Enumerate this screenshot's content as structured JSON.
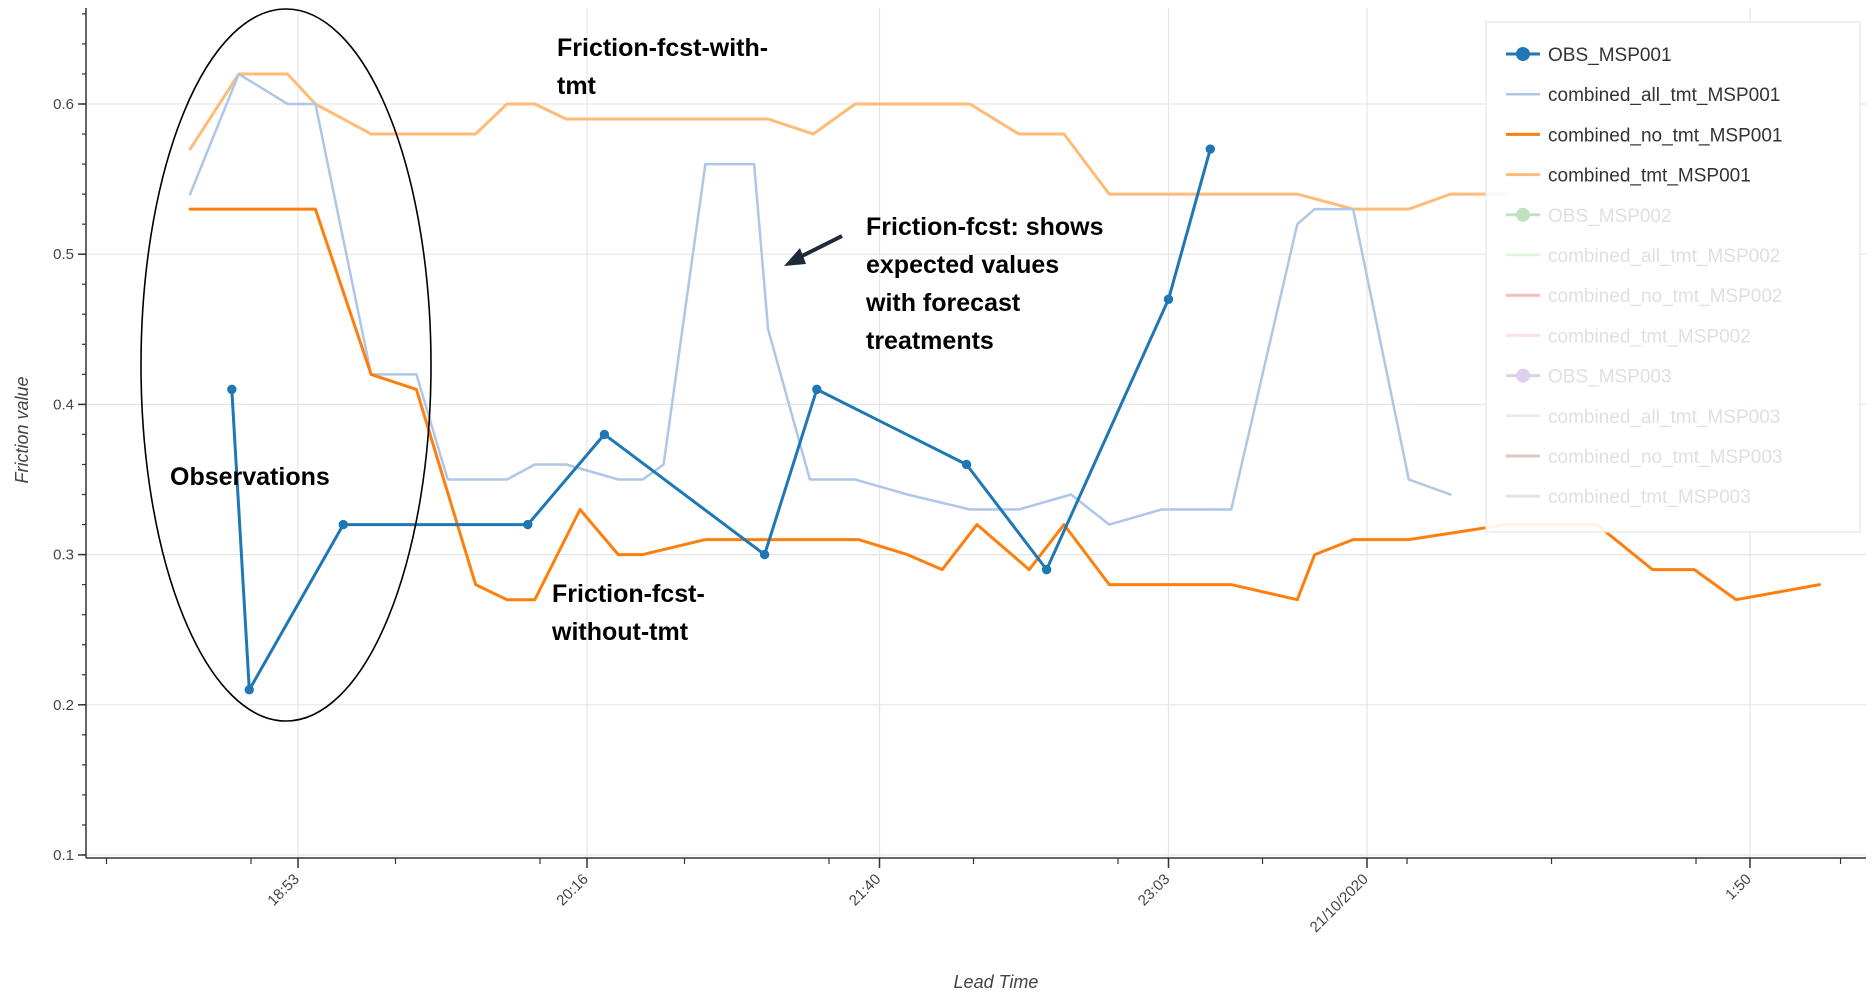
{
  "chart_data": {
    "type": "line",
    "xlabel": "Lead Time",
    "ylabel": "Friction value",
    "ylim": [
      0.1,
      0.6
    ],
    "y_ticks": [
      "0.1",
      "0.2",
      "0.3",
      "0.4",
      "0.5",
      "0.6"
    ],
    "x_unit": "minutes after 18:00",
    "xlim": [
      -2,
      500
    ],
    "x_ticks": [
      {
        "label": "18:53",
        "value": 53
      },
      {
        "label": "20:16",
        "value": 136
      },
      {
        "label": "21:40",
        "value": 220
      },
      {
        "label": "23:03",
        "value": 303
      },
      {
        "label": "21/10/2020",
        "value": 360
      },
      {
        "label": "1:50",
        "value": 470
      }
    ],
    "grid": true,
    "legend_position": "top-right",
    "series": [
      {
        "name": "OBS_MSP001",
        "color": "#1f77b4",
        "markers": true,
        "muted": false,
        "width": 3,
        "x": [
          34,
          39,
          66,
          119,
          141,
          187,
          202,
          245,
          268,
          303,
          315
        ],
        "y": [
          0.41,
          0.21,
          0.32,
          0.32,
          0.38,
          0.3,
          0.41,
          0.36,
          0.29,
          0.47,
          0.57
        ]
      },
      {
        "name": "combined_all_tmt_MSP001",
        "color": "#aec7e8",
        "markers": false,
        "muted": false,
        "width": 2.5,
        "x": [
          22,
          36,
          50,
          58,
          74,
          87,
          96,
          104,
          113,
          121,
          130,
          145,
          152,
          158,
          170,
          184,
          188,
          200,
          213,
          228,
          246,
          260,
          275,
          286,
          301,
          321,
          340,
          345,
          356,
          372,
          384
        ],
        "y": [
          0.54,
          0.62,
          0.6,
          0.6,
          0.42,
          0.42,
          0.35,
          0.35,
          0.35,
          0.36,
          0.36,
          0.35,
          0.35,
          0.36,
          0.56,
          0.56,
          0.45,
          0.35,
          0.35,
          0.34,
          0.33,
          0.33,
          0.34,
          0.32,
          0.33,
          0.33,
          0.52,
          0.53,
          0.53,
          0.35,
          0.34
        ]
      },
      {
        "name": "combined_no_tmt_MSP001",
        "color": "#ff7f0e",
        "markers": false,
        "muted": false,
        "width": 3,
        "x": [
          22,
          36,
          50,
          58,
          74,
          87,
          104,
          113,
          121,
          134,
          145,
          152,
          170,
          188,
          202,
          214,
          228,
          238,
          248,
          263,
          273,
          286,
          301,
          321,
          340,
          345,
          356,
          372,
          400,
          414,
          426,
          442,
          454,
          466,
          490
        ],
        "y": [
          0.53,
          0.53,
          0.53,
          0.53,
          0.42,
          0.41,
          0.28,
          0.27,
          0.27,
          0.33,
          0.3,
          0.3,
          0.31,
          0.31,
          0.31,
          0.31,
          0.3,
          0.29,
          0.32,
          0.29,
          0.32,
          0.28,
          0.28,
          0.28,
          0.27,
          0.3,
          0.31,
          0.31,
          0.32,
          0.32,
          0.32,
          0.29,
          0.29,
          0.27,
          0.28
        ]
      },
      {
        "name": "combined_tmt_MSP001",
        "color": "#ffbb78",
        "markers": false,
        "muted": false,
        "width": 3,
        "x": [
          22,
          36,
          50,
          58,
          74,
          87,
          96,
          104,
          113,
          121,
          130,
          145,
          152,
          170,
          188,
          201,
          213,
          228,
          246,
          260,
          273,
          286,
          301,
          340,
          356,
          372,
          384,
          400
        ],
        "y": [
          0.57,
          0.62,
          0.62,
          0.6,
          0.58,
          0.58,
          0.58,
          0.58,
          0.6,
          0.6,
          0.59,
          0.59,
          0.59,
          0.59,
          0.59,
          0.58,
          0.6,
          0.6,
          0.6,
          0.58,
          0.58,
          0.54,
          0.54,
          0.54,
          0.53,
          0.53,
          0.54,
          0.54
        ]
      },
      {
        "name": "OBS_MSP002",
        "color": "#2ca02c",
        "markers": true,
        "muted": true,
        "width": 3,
        "x": [],
        "y": []
      },
      {
        "name": "combined_all_tmt_MSP002",
        "color": "#98df8a",
        "markers": false,
        "muted": true,
        "width": 2.5,
        "x": [],
        "y": []
      },
      {
        "name": "combined_no_tmt_MSP002",
        "color": "#d62728",
        "markers": false,
        "muted": true,
        "width": 3,
        "x": [],
        "y": []
      },
      {
        "name": "combined_tmt_MSP002",
        "color": "#ff9896",
        "markers": false,
        "muted": true,
        "width": 3,
        "x": [],
        "y": []
      },
      {
        "name": "OBS_MSP003",
        "color": "#9467bd",
        "markers": true,
        "muted": true,
        "width": 3,
        "x": [],
        "y": []
      },
      {
        "name": "combined_all_tmt_MSP003",
        "color": "#c5b0d5",
        "markers": false,
        "muted": true,
        "width": 2.5,
        "x": [],
        "y": []
      },
      {
        "name": "combined_no_tmt_MSP003",
        "color": "#8c564b",
        "markers": false,
        "muted": true,
        "width": 3,
        "x": [],
        "y": []
      },
      {
        "name": "combined_tmt_MSP003",
        "color": "#c49c94",
        "markers": false,
        "muted": true,
        "width": 3,
        "x": [],
        "y": []
      }
    ],
    "annotations": [
      {
        "key": "with_tmt",
        "lines": [
          "Friction-fcst-with-",
          "tmt"
        ]
      },
      {
        "key": "fcst",
        "lines": [
          "Friction-fcst: shows",
          "expected values",
          "with forecast",
          "treatments"
        ]
      },
      {
        "key": "without_tmt",
        "lines": [
          "Friction-fcst-",
          "without-tmt"
        ]
      },
      {
        "key": "observations",
        "lines": [
          "Observations"
        ]
      }
    ]
  }
}
